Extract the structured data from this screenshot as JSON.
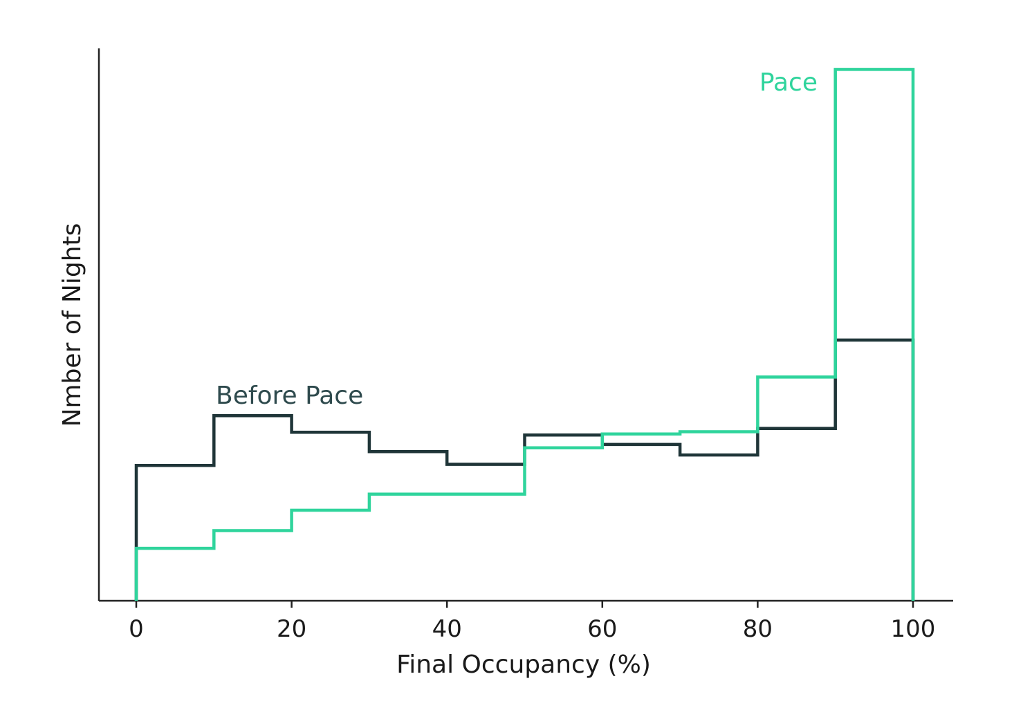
{
  "chart_data": {
    "type": "histogram",
    "xlabel": "Final Occupancy (%)",
    "ylabel": "Nmber of Nights",
    "xlim": [
      -2.4,
      105
    ],
    "ylim": [
      0,
      100
    ],
    "x_ticks": [
      "0",
      "20",
      "40",
      "60",
      "80",
      "100"
    ],
    "y_ticks_shown": false,
    "grid": false,
    "bin_edges": [
      0,
      10,
      20,
      30,
      40,
      50,
      60,
      70,
      80,
      90,
      100
    ],
    "series": [
      {
        "name": "Before Pace",
        "color": "#1f3538",
        "values": [
          24.5,
          33.5,
          30.5,
          27.0,
          24.7,
          30.0,
          28.3,
          26.4,
          31.2,
          47.2
        ]
      },
      {
        "name": "Pace",
        "color": "#2fd49c",
        "values": [
          9.5,
          12.7,
          16.4,
          19.3,
          19.3,
          27.7,
          30.2,
          30.6,
          40.5,
          96.2
        ]
      }
    ],
    "annotations": [
      {
        "text": "Before Pace",
        "series": 0
      },
      {
        "text": "Pace",
        "series": 1
      }
    ]
  }
}
